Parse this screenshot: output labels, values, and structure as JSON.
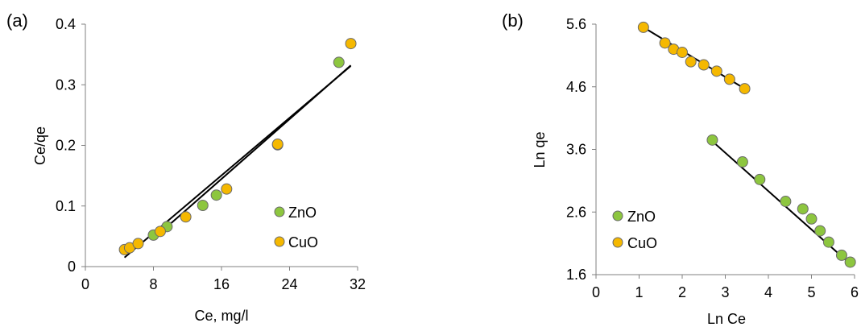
{
  "chart_data": [
    {
      "type": "scatter",
      "panel_label": "(a)",
      "xlabel": "Ce, mg/l",
      "ylabel": "Ce/qe",
      "xlim": [
        0,
        32
      ],
      "ylim": [
        0,
        0.4
      ],
      "xticks": [
        0,
        8,
        16,
        24,
        32
      ],
      "yticks": [
        0,
        0.1,
        0.2,
        0.3,
        0.4
      ],
      "xtick_labels": [
        "0",
        "8",
        "16",
        "24",
        "32"
      ],
      "ytick_labels": [
        "0",
        "0.1",
        "0.2",
        "0.3",
        "0.4"
      ],
      "grid": false,
      "legend_position": "right",
      "series": [
        {
          "name": "ZnO",
          "color": "#8DC63F",
          "points": [
            [
              8.0,
              0.052
            ],
            [
              9.6,
              0.066
            ],
            [
              13.8,
              0.101
            ],
            [
              15.4,
              0.118
            ],
            [
              22.6,
              0.201
            ],
            [
              29.8,
              0.337
            ]
          ],
          "trendline": [
            [
              8.0,
              0.046
            ],
            [
              31.2,
              0.332
            ]
          ]
        },
        {
          "name": "CuO",
          "color": "#F5B800",
          "points": [
            [
              4.6,
              0.028
            ],
            [
              5.2,
              0.031
            ],
            [
              6.2,
              0.038
            ],
            [
              8.8,
              0.058
            ],
            [
              11.8,
              0.082
            ],
            [
              16.6,
              0.128
            ],
            [
              22.6,
              0.202
            ],
            [
              31.2,
              0.368
            ]
          ],
          "trendline": [
            [
              4.6,
              0.015
            ],
            [
              31.2,
              0.331
            ]
          ]
        }
      ]
    },
    {
      "type": "scatter",
      "panel_label": "(b)",
      "xlabel": "Ln Ce",
      "ylabel": "Ln qe",
      "xlim": [
        0,
        6
      ],
      "ylim": [
        1.6,
        5.6
      ],
      "xticks": [
        0,
        1,
        2,
        3,
        4,
        5,
        6
      ],
      "yticks": [
        1.6,
        2.6,
        3.6,
        4.6,
        5.6
      ],
      "xtick_labels": [
        "0",
        "1",
        "2",
        "3",
        "4",
        "5",
        "6"
      ],
      "ytick_labels": [
        "1.6",
        "2.6",
        "3.6",
        "4.6",
        "5.6"
      ],
      "grid": false,
      "legend_position": "left",
      "series": [
        {
          "name": "ZnO",
          "color": "#8DC63F",
          "points": [
            [
              2.7,
              3.75
            ],
            [
              3.4,
              3.4
            ],
            [
              3.8,
              3.12
            ],
            [
              4.4,
              2.77
            ],
            [
              4.8,
              2.65
            ],
            [
              5.0,
              2.49
            ],
            [
              5.2,
              2.3
            ],
            [
              5.4,
              2.12
            ],
            [
              5.7,
              1.91
            ],
            [
              5.9,
              1.8
            ]
          ],
          "trendline": [
            [
              2.7,
              3.73
            ],
            [
              5.9,
              1.77
            ]
          ]
        },
        {
          "name": "CuO",
          "color": "#F5B800",
          "points": [
            [
              1.1,
              5.55
            ],
            [
              1.6,
              5.3
            ],
            [
              1.8,
              5.2
            ],
            [
              2.0,
              5.15
            ],
            [
              2.2,
              5.0
            ],
            [
              2.5,
              4.95
            ],
            [
              2.8,
              4.85
            ],
            [
              3.1,
              4.72
            ],
            [
              3.45,
              4.57
            ]
          ],
          "trendline": [
            [
              1.1,
              5.55
            ],
            [
              3.45,
              4.57
            ]
          ]
        }
      ]
    }
  ]
}
